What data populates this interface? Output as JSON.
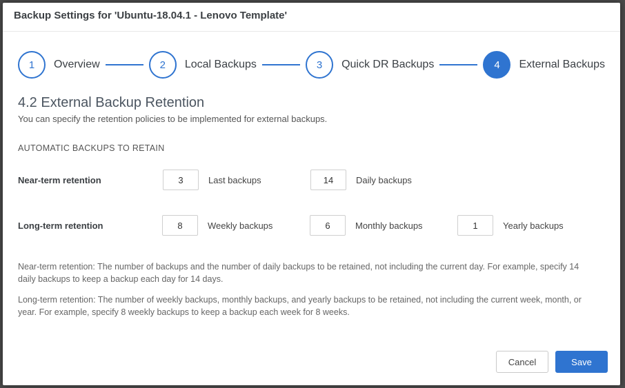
{
  "header": {
    "title": "Backup Settings for 'Ubuntu-18.04.1 - Lenovo Template'"
  },
  "stepper": {
    "active_index": 3,
    "steps": [
      {
        "num": "1",
        "label": "Overview"
      },
      {
        "num": "2",
        "label": "Local Backups"
      },
      {
        "num": "3",
        "label": "Quick DR Backups"
      },
      {
        "num": "4",
        "label": "External Backups"
      }
    ]
  },
  "section": {
    "title": "4.2 External Backup Retention",
    "desc": "You can specify the retention policies to be implemented for external backups.",
    "group_label": "AUTOMATIC BACKUPS TO RETAIN"
  },
  "near_term": {
    "row_label": "Near-term retention",
    "last": {
      "value": "3",
      "label": "Last backups"
    },
    "daily": {
      "value": "14",
      "label": "Daily backups"
    }
  },
  "long_term": {
    "row_label": "Long-term retention",
    "weekly": {
      "value": "8",
      "label": "Weekly backups"
    },
    "monthly": {
      "value": "6",
      "label": "Monthly backups"
    },
    "yearly": {
      "value": "1",
      "label": "Yearly backups"
    }
  },
  "help": {
    "near": "Near-term retention: The number of backups and the number of daily backups to be retained, not including the current day. For example, specify 14 daily backups to keep a backup each day for 14 days.",
    "long": "Long-term retention: The number of weekly backups, monthly backups, and yearly backups to be retained, not including the current week, month, or year. For example, specify 8 weekly backups to keep a backup each week for 8 weeks."
  },
  "footer": {
    "cancel": "Cancel",
    "save": "Save"
  },
  "colors": {
    "accent": "#2f74d0",
    "text_primary": "#3c4044",
    "text_muted": "#666",
    "border": "#cfcfcf",
    "background": "#ffffff"
  }
}
